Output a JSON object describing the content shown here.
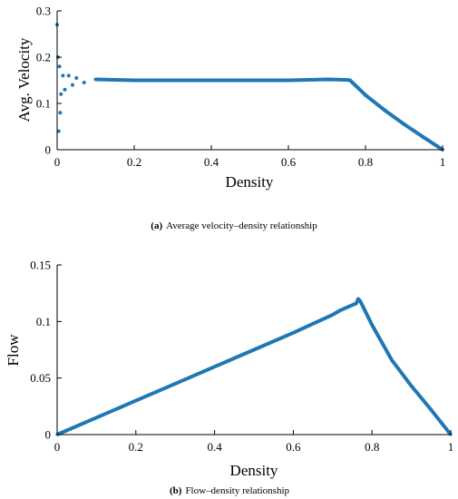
{
  "colors": {
    "series": "#1f77b4",
    "axis": "#000000"
  },
  "chart_data": [
    {
      "type": "scatter",
      "xlabel": "Density",
      "ylabel": "Avg. Velocity",
      "caption_tag": "(a)",
      "caption_text": "Average velocity–density relationship",
      "xlim": [
        0,
        1
      ],
      "ylim": [
        0,
        0.3
      ],
      "xticks": [
        0,
        0.2,
        0.4,
        0.6,
        0.8,
        1
      ],
      "xtick_labels": [
        "0",
        "0.2",
        "0.4",
        "0.6",
        "0.8",
        "1"
      ],
      "yticks": [
        0,
        0.1,
        0.2,
        0.3
      ],
      "ytick_labels": [
        "0",
        "0.1",
        "0.2",
        "0.3"
      ],
      "grid": false,
      "series": [
        {
          "x": [
            0.0,
            0.002,
            0.004,
            0.006,
            0.008,
            0.01,
            0.015,
            0.02,
            0.03,
            0.04,
            0.05,
            0.07,
            0.1,
            0.2,
            0.3,
            0.4,
            0.5,
            0.6,
            0.7,
            0.75,
            0.76,
            0.8,
            0.85,
            0.9,
            0.95,
            1.0
          ],
          "y": [
            0.27,
            0.2,
            0.04,
            0.18,
            0.08,
            0.12,
            0.16,
            0.13,
            0.16,
            0.14,
            0.155,
            0.145,
            0.152,
            0.15,
            0.15,
            0.15,
            0.15,
            0.15,
            0.152,
            0.151,
            0.15,
            0.118,
            0.085,
            0.055,
            0.027,
            0.0
          ]
        }
      ]
    },
    {
      "type": "line",
      "xlabel": "Density",
      "ylabel": "Flow",
      "caption_tag": "(b)",
      "caption_text": "Flow–density relationship",
      "xlim": [
        0,
        1
      ],
      "ylim": [
        0,
        0.15
      ],
      "xticks": [
        0,
        0.2,
        0.4,
        0.6,
        0.8,
        1
      ],
      "xtick_labels": [
        "0",
        "0.2",
        "0.4",
        "0.6",
        "0.8",
        "1"
      ],
      "yticks": [
        0,
        0.05,
        0.1,
        0.15
      ],
      "ytick_labels": [
        "0",
        "0.05",
        "0.1",
        "0.15"
      ],
      "grid": false,
      "series": [
        {
          "x": [
            0.0,
            0.1,
            0.2,
            0.3,
            0.4,
            0.5,
            0.6,
            0.65,
            0.7,
            0.72,
            0.74,
            0.76,
            0.765,
            0.77,
            0.8,
            0.85,
            0.9,
            0.95,
            1.0
          ],
          "y": [
            0.0,
            0.015,
            0.03,
            0.045,
            0.06,
            0.075,
            0.09,
            0.098,
            0.106,
            0.11,
            0.113,
            0.116,
            0.12,
            0.118,
            0.097,
            0.066,
            0.043,
            0.022,
            0.0
          ]
        }
      ]
    }
  ]
}
